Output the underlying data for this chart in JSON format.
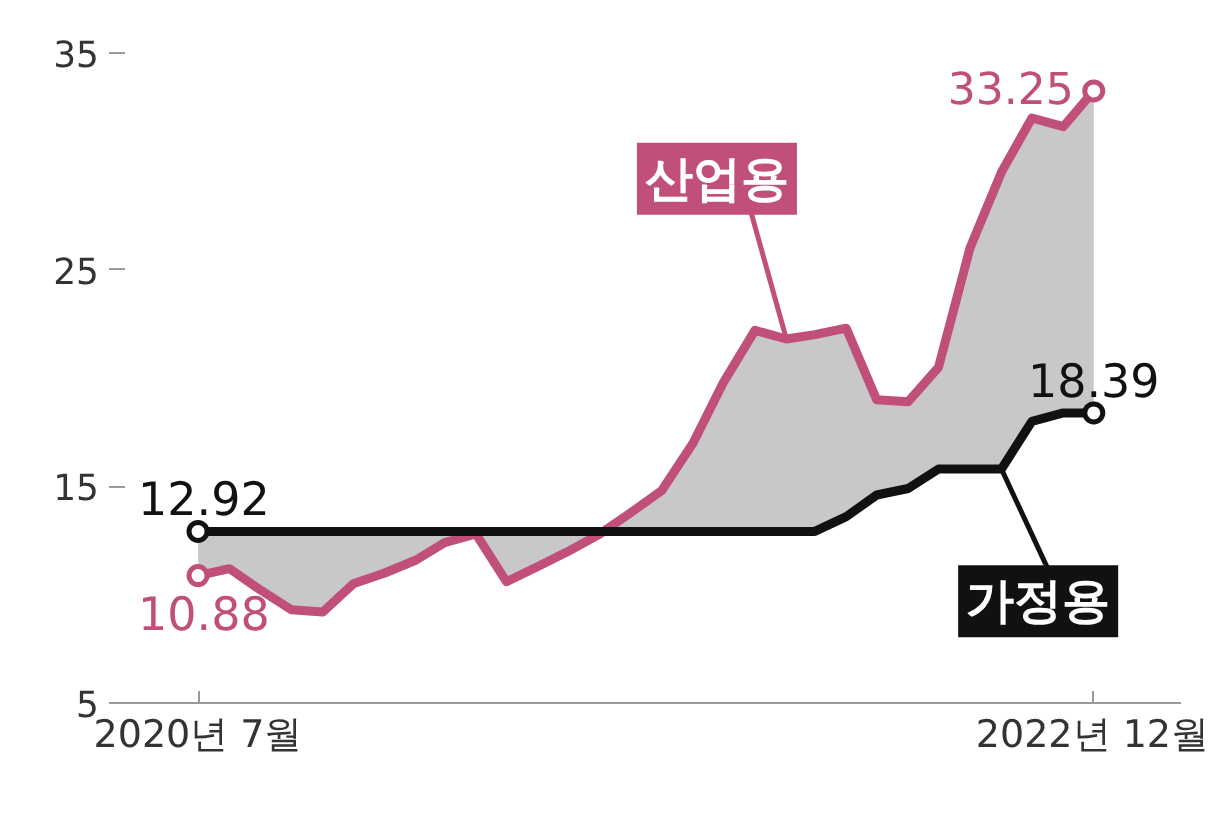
{
  "chart_data": {
    "type": "line",
    "x": [
      "2020-07",
      "2020-08",
      "2020-09",
      "2020-10",
      "2020-11",
      "2020-12",
      "2021-01",
      "2021-02",
      "2021-03",
      "2021-04",
      "2021-05",
      "2021-06",
      "2021-07",
      "2021-08",
      "2021-09",
      "2021-10",
      "2021-11",
      "2021-12",
      "2022-01",
      "2022-02",
      "2022-03",
      "2022-04",
      "2022-05",
      "2022-06",
      "2022-07",
      "2022-08",
      "2022-09",
      "2022-10",
      "2022-11",
      "2022-12"
    ],
    "series": [
      {
        "name": "산업용",
        "color": "#c0507a",
        "values": [
          10.88,
          11.2,
          10.2,
          9.3,
          9.2,
          10.5,
          11.0,
          11.6,
          12.4,
          12.8,
          10.6,
          11.3,
          12.0,
          12.8,
          13.8,
          14.8,
          17.0,
          19.8,
          22.2,
          21.8,
          22.0,
          22.3,
          19.0,
          18.9,
          20.5,
          26.0,
          29.5,
          32.0,
          31.6,
          33.25
        ],
        "value_labels": [
          "10.88",
          null,
          null,
          null,
          null,
          null,
          null,
          null,
          null,
          null,
          null,
          null,
          null,
          null,
          null,
          null,
          null,
          null,
          null,
          null,
          null,
          null,
          null,
          null,
          null,
          null,
          null,
          null,
          null,
          "33.25"
        ]
      },
      {
        "name": "가정용",
        "color": "#111111",
        "values": [
          12.92,
          12.92,
          12.92,
          12.92,
          12.92,
          12.92,
          12.92,
          12.92,
          12.92,
          12.92,
          12.92,
          12.92,
          12.92,
          12.92,
          12.92,
          12.92,
          12.92,
          12.92,
          12.92,
          12.92,
          12.92,
          13.6,
          14.6,
          14.9,
          15.8,
          15.8,
          15.8,
          18.0,
          18.39,
          18.39
        ],
        "value_labels": [
          "12.92",
          null,
          null,
          null,
          null,
          null,
          null,
          null,
          null,
          null,
          null,
          null,
          null,
          null,
          null,
          null,
          null,
          null,
          null,
          null,
          null,
          null,
          null,
          null,
          null,
          null,
          null,
          null,
          null,
          "18.39"
        ]
      }
    ],
    "xlim": [
      "2020-04-20",
      "2023-02-25"
    ],
    "xticks": [
      {
        "value": "2020-07",
        "label": "2020년 7월"
      },
      {
        "value": "2022-12",
        "label": "2022년 12월"
      }
    ],
    "ylim": [
      5,
      35
    ],
    "yticks": [
      5,
      15,
      25,
      35
    ],
    "grid": false,
    "line_style": "solid"
  }
}
